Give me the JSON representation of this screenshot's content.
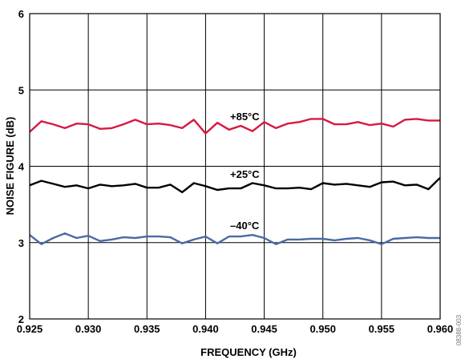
{
  "chart_data": {
    "type": "line",
    "xlabel": "FREQUENCY (GHz)",
    "ylabel": "NOISE FIGURE (dB)",
    "xlim": [
      0.925,
      0.96
    ],
    "ylim": [
      2,
      6
    ],
    "xticks": [
      "0.925",
      "0.930",
      "0.935",
      "0.940",
      "0.945",
      "0.950",
      "0.955",
      "0.960"
    ],
    "yticks": [
      "2",
      "3",
      "4",
      "5",
      "6"
    ],
    "grid": true,
    "colors": {
      "hot": "#d7193f",
      "room": "#000000",
      "cold": "#4a6aa5"
    },
    "x": [
      0.925,
      0.926,
      0.927,
      0.928,
      0.929,
      0.93,
      0.931,
      0.932,
      0.933,
      0.934,
      0.935,
      0.936,
      0.937,
      0.938,
      0.939,
      0.94,
      0.941,
      0.942,
      0.943,
      0.944,
      0.945,
      0.946,
      0.947,
      0.948,
      0.949,
      0.95,
      0.951,
      0.952,
      0.953,
      0.954,
      0.955,
      0.956,
      0.957,
      0.958,
      0.959,
      0.96
    ],
    "series": [
      {
        "name": "+85°C",
        "color_key": "hot",
        "values": [
          4.45,
          4.59,
          4.55,
          4.5,
          4.56,
          4.55,
          4.49,
          4.5,
          4.55,
          4.61,
          4.55,
          4.56,
          4.54,
          4.5,
          4.61,
          4.43,
          4.57,
          4.48,
          4.53,
          4.46,
          4.58,
          4.5,
          4.56,
          4.58,
          4.62,
          4.62,
          4.55,
          4.55,
          4.58,
          4.54,
          4.56,
          4.52,
          4.61,
          4.62,
          4.6,
          4.6
        ]
      },
      {
        "name": "+25°C",
        "color_key": "room",
        "values": [
          3.75,
          3.81,
          3.77,
          3.73,
          3.75,
          3.71,
          3.76,
          3.74,
          3.75,
          3.77,
          3.72,
          3.72,
          3.76,
          3.66,
          3.78,
          3.74,
          3.69,
          3.71,
          3.71,
          3.78,
          3.75,
          3.71,
          3.71,
          3.72,
          3.7,
          3.78,
          3.76,
          3.77,
          3.75,
          3.73,
          3.79,
          3.8,
          3.75,
          3.76,
          3.7,
          3.85
        ]
      },
      {
        "name": "–40°C",
        "color_key": "cold",
        "values": [
          3.1,
          2.98,
          3.06,
          3.12,
          3.06,
          3.09,
          3.02,
          3.04,
          3.07,
          3.06,
          3.08,
          3.08,
          3.07,
          2.99,
          3.04,
          3.08,
          2.99,
          3.08,
          3.08,
          3.1,
          3.06,
          2.98,
          3.04,
          3.04,
          3.05,
          3.05,
          3.03,
          3.05,
          3.06,
          3.03,
          2.98,
          3.05,
          3.06,
          3.07,
          3.06,
          3.06
        ]
      }
    ],
    "side_id": "08388-003"
  }
}
